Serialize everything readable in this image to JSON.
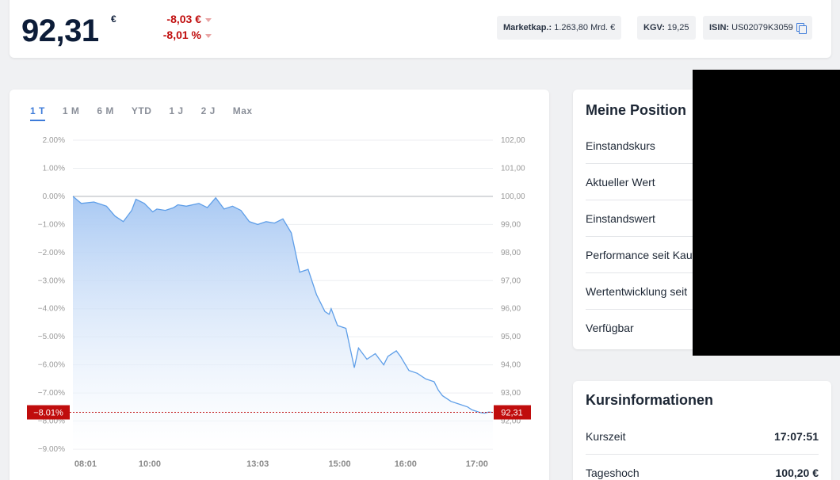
{
  "quote": {
    "price": "92,31",
    "currency": "€",
    "change_abs": "-8,03 €",
    "change_pct": "-8,01 %"
  },
  "stats": {
    "market_cap_label": "Marketkap.:",
    "market_cap_value": "1.263,80 Mrd. €",
    "kgv_label": "KGV:",
    "kgv_value": "19,25",
    "isin_label": "ISIN:",
    "isin_value": "US02079K3059"
  },
  "tabs": [
    "1 T",
    "1 M",
    "6 M",
    "YTD",
    "1 J",
    "2 J",
    "Max"
  ],
  "active_tab": 0,
  "chart_data": {
    "type": "area",
    "title": "",
    "xlabel": "",
    "ylabel": "",
    "x_ticks": [
      "08:01",
      "10:00",
      "13:03",
      "15:00",
      "16:00",
      "17:00"
    ],
    "y_left_ticks": [
      "2.00%",
      "1.00%",
      "0.00%",
      "−1.00%",
      "−2.00%",
      "−3.00%",
      "−4.00%",
      "−5.00%",
      "−6.00%",
      "−7.00%",
      "−8.00%",
      "−9.00%"
    ],
    "y_right_ticks": [
      "102,00",
      "101,00",
      "100,00",
      "99,00",
      "98,00",
      "97,00",
      "96,00",
      "95,00",
      "94,00",
      "93,00",
      "92,00"
    ],
    "ylim_pct": [
      -9,
      2
    ],
    "ylim_price": [
      92,
      102
    ],
    "current_pct_label": "−8.01%",
    "current_price_label": "92,31",
    "accent": "#5e9ee8",
    "marker_color": "#c00d0d",
    "series": [
      {
        "x": [
          0,
          0.02,
          0.05,
          0.08,
          0.1,
          0.12,
          0.14,
          0.15,
          0.17,
          0.19,
          0.2,
          0.22,
          0.24,
          0.25,
          0.27,
          0.3,
          0.32,
          0.34,
          0.36,
          0.38,
          0.4,
          0.42,
          0.44,
          0.46,
          0.48,
          0.5,
          0.52,
          0.54,
          0.56,
          0.58,
          0.6,
          0.61,
          0.615,
          0.63,
          0.65,
          0.66,
          0.67,
          0.68,
          0.7,
          0.72,
          0.74,
          0.75,
          0.77,
          0.78,
          0.8,
          0.82,
          0.84,
          0.86,
          0.87,
          0.88,
          0.9,
          0.92,
          0.94,
          0.95,
          0.96,
          0.97,
          0.98,
          0.99,
          1.0
        ],
        "y": [
          100.0,
          99.75,
          99.8,
          99.65,
          99.3,
          99.1,
          99.5,
          99.9,
          99.75,
          99.45,
          99.55,
          99.5,
          99.6,
          99.7,
          99.65,
          99.75,
          99.6,
          99.95,
          99.55,
          99.65,
          99.5,
          99.1,
          99.0,
          99.1,
          99.05,
          99.2,
          98.7,
          97.3,
          97.4,
          96.5,
          95.9,
          95.8,
          96.0,
          95.4,
          95.3,
          94.6,
          93.9,
          94.6,
          94.2,
          94.4,
          94.0,
          94.3,
          94.5,
          94.3,
          93.8,
          93.7,
          93.5,
          93.4,
          93.1,
          92.9,
          92.7,
          92.6,
          92.5,
          92.4,
          92.35,
          92.3,
          92.28,
          92.32,
          92.31
        ]
      }
    ]
  },
  "position": {
    "title": "Meine Position",
    "rows": [
      "Einstandskurs",
      "Aktueller Wert",
      "Einstandswert",
      "Performance seit Kauf",
      "Wertentwicklung seit",
      "Verfügbar"
    ]
  },
  "kursinfo": {
    "title": "Kursinformationen",
    "rows": [
      {
        "label": "Kurszeit",
        "value": "17:07:51"
      },
      {
        "label": "Tageshoch",
        "value": "100,20 €"
      }
    ]
  }
}
